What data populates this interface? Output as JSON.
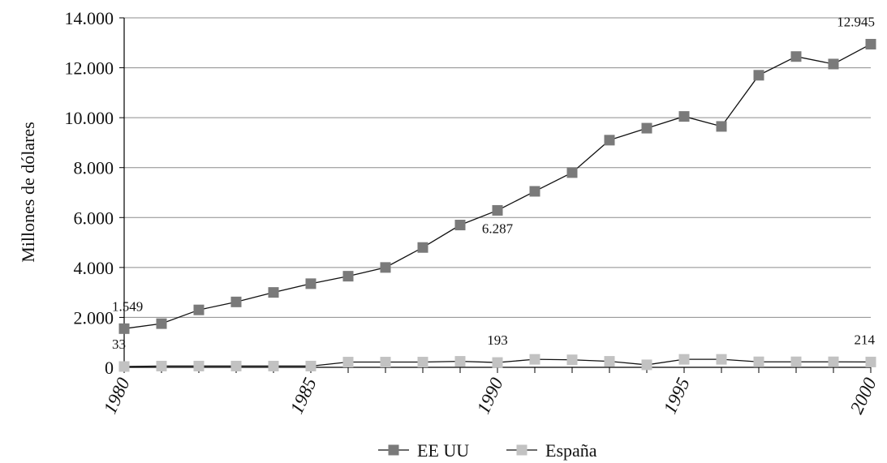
{
  "chart_data": {
    "type": "line",
    "title": "",
    "xlabel": "",
    "ylabel": "Millones de dólares",
    "ylim": [
      0,
      14000
    ],
    "xlim": [
      1980,
      2000
    ],
    "y_ticks": [
      0,
      2000,
      4000,
      6000,
      8000,
      10000,
      12000,
      14000
    ],
    "y_tick_labels": [
      "0",
      "2.000",
      "4.000",
      "6.000",
      "8.000",
      "10.000",
      "12.000",
      "14.000"
    ],
    "x_tick_labels": [
      "1980",
      "1985",
      "1990",
      "1995",
      "2000"
    ],
    "x_tick_values": [
      1980,
      1985,
      1990,
      1995,
      2000
    ],
    "grid": "horizontal",
    "legend_position": "bottom-center",
    "x": [
      1980,
      1981,
      1982,
      1983,
      1984,
      1985,
      1986,
      1987,
      1988,
      1989,
      1990,
      1991,
      1992,
      1993,
      1994,
      1995,
      1996,
      1997,
      1998,
      1999,
      2000
    ],
    "series": [
      {
        "name": "EE UU",
        "color": "#7a7a7a",
        "values": [
          1549,
          1750,
          2300,
          2620,
          3000,
          3350,
          3650,
          4000,
          4800,
          5700,
          6287,
          7050,
          7800,
          9100,
          9580,
          10050,
          9650,
          11700,
          12450,
          12150,
          12945
        ]
      },
      {
        "name": "España",
        "color": "#c2c2c2",
        "values": [
          33,
          50,
          50,
          50,
          50,
          50,
          210,
          210,
          210,
          240,
          193,
          320,
          300,
          240,
          100,
          320,
          320,
          220,
          220,
          220,
          214
        ]
      }
    ],
    "annotations": [
      {
        "series": 0,
        "index": 0,
        "text": "1.549",
        "position": "above"
      },
      {
        "series": 0,
        "index": 10,
        "text": "6.287",
        "position": "below"
      },
      {
        "series": 0,
        "index": 20,
        "text": "12.945",
        "position": "above"
      },
      {
        "series": 1,
        "index": 0,
        "text": "33",
        "position": "above"
      },
      {
        "series": 1,
        "index": 10,
        "text": "193",
        "position": "above"
      },
      {
        "series": 1,
        "index": 20,
        "text": "214",
        "position": "above"
      }
    ]
  }
}
